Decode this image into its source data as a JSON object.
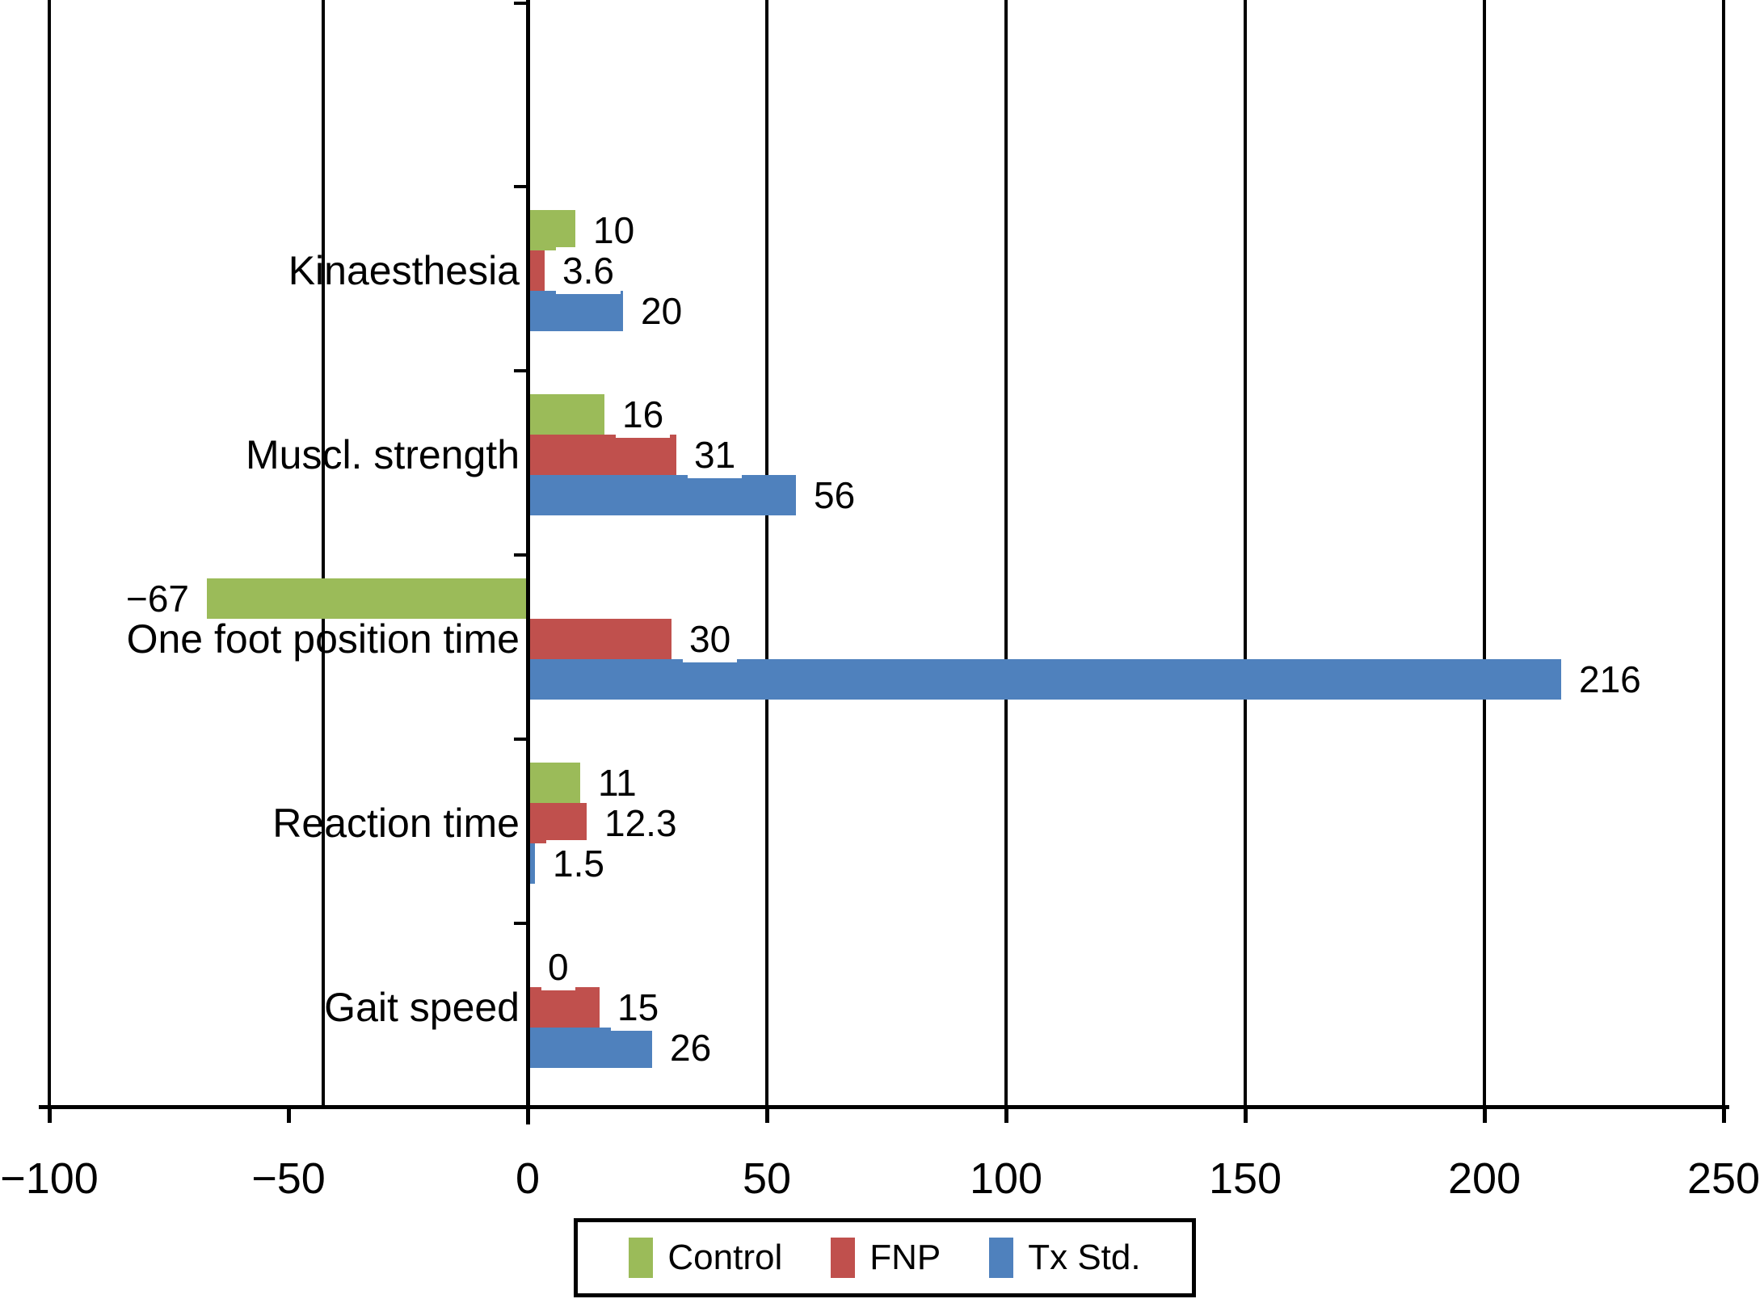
{
  "chart_data": {
    "type": "bar",
    "orientation": "horizontal",
    "title": "",
    "categories": [
      "Kinaesthesia",
      "Muscl. strength",
      "One foot position time",
      "Reaction time",
      "Gait speed"
    ],
    "series": [
      {
        "name": "Control",
        "color": "#9bbb59",
        "values": [
          10,
          16,
          -67,
          11,
          0
        ],
        "value_labels": [
          "10",
          "16",
          "−67",
          "11",
          "0"
        ]
      },
      {
        "name": "FNP",
        "color": "#c0504d",
        "values": [
          3.6,
          31,
          30,
          12.3,
          15
        ],
        "value_labels": [
          "3.6",
          "31",
          "30",
          "12.3",
          "15"
        ]
      },
      {
        "name": "Tx Std.",
        "color": "#4f81bd",
        "values": [
          20,
          56,
          216,
          1.5,
          26
        ],
        "value_labels": [
          "20",
          "56",
          "216",
          "1.5",
          "26"
        ]
      }
    ],
    "xlim": [
      -100,
      250
    ],
    "x_ticks": [
      -100,
      -50,
      0,
      50,
      100,
      150,
      200,
      250
    ],
    "x_tick_labels": [
      "−100",
      "−50",
      "0",
      "50",
      "100",
      "150",
      "200",
      "250"
    ],
    "grid": "vertical-gridlines-every-50",
    "legend_position": "bottom-center",
    "axis_color": "#000000",
    "background_color": "#ffffff"
  }
}
